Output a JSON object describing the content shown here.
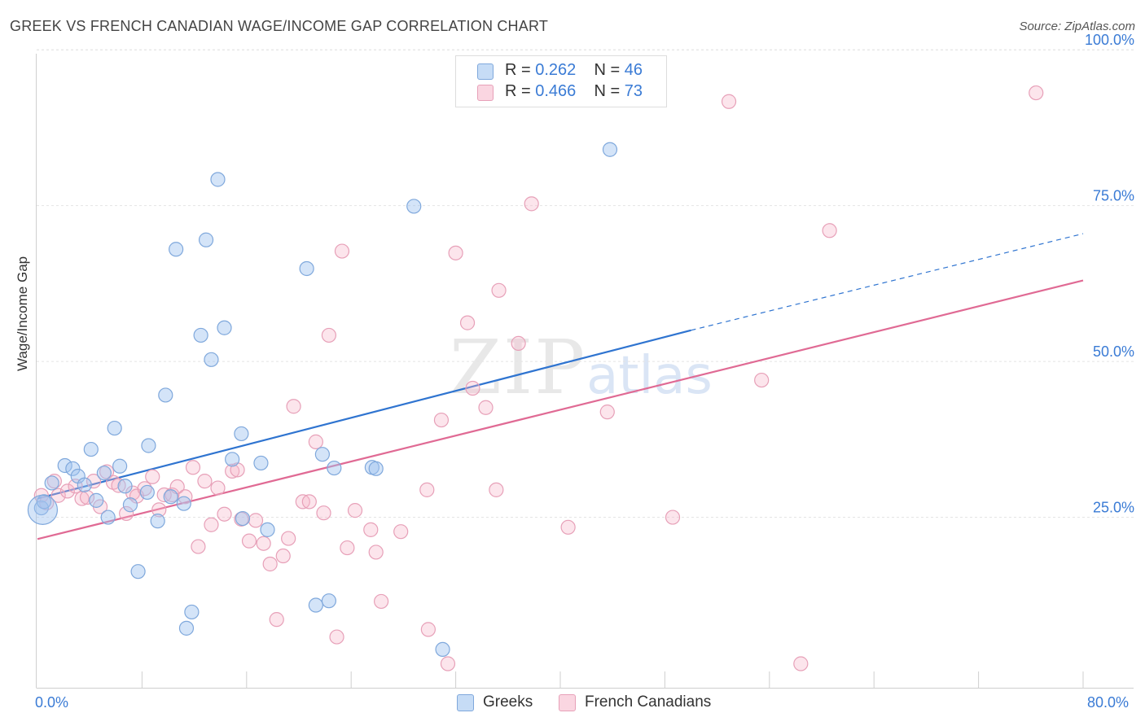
{
  "header": {
    "title": "GREEK VS FRENCH CANADIAN WAGE/INCOME GAP CORRELATION CHART",
    "source": "Source: ZipAtlas.com"
  },
  "legend": {
    "rows": [
      {
        "r_label": "R =",
        "r_value": "0.262",
        "n_label": "N =",
        "n_value": "46"
      },
      {
        "r_label": "R =",
        "r_value": "0.466",
        "n_label": "N =",
        "n_value": "73"
      }
    ]
  },
  "bottom_legend": {
    "greeks": "Greeks",
    "french": "French Canadians"
  },
  "watermark": {
    "zip": "ZIP",
    "atlas": "atlas"
  },
  "colors": {
    "greek_fill": "rgba(160,196,240,0.45)",
    "greek_stroke": "#7fa8dc",
    "greek_line": "#2f74d0",
    "french_fill": "rgba(245,180,200,0.35)",
    "french_stroke": "#e7a0b8",
    "french_line": "#e06a94"
  },
  "chart_data": {
    "type": "scatter",
    "title": "GREEK VS FRENCH CANADIAN WAGE/INCOME GAP CORRELATION CHART",
    "xlabel": "",
    "ylabel": "Wage/Income Gap",
    "xlim": [
      0,
      80
    ],
    "ylim": [
      0,
      105
    ],
    "x_tick_labels": [
      "0.0%",
      "80.0%"
    ],
    "y_ticks": [
      25,
      50,
      75,
      100
    ],
    "y_tick_labels": [
      "25.0%",
      "50.0%",
      "75.0%",
      "100.0%"
    ],
    "grid": true,
    "legend_position": "top-center",
    "series": [
      {
        "name": "Greeks",
        "r": 0.262,
        "n": 46,
        "trend": {
          "x0": 0,
          "y0": 28.0,
          "x1": 50,
          "y1": 55.0,
          "dashed_to_x": 80,
          "dashed_to_y": 70.5
        },
        "points": [
          [
            0.3,
            26.5
          ],
          [
            0.5,
            27.5
          ],
          [
            1.1,
            30.5
          ],
          [
            2.1,
            33.3
          ],
          [
            2.7,
            32.8
          ],
          [
            3.1,
            31.6
          ],
          [
            3.6,
            30.2
          ],
          [
            4.1,
            35.9
          ],
          [
            4.5,
            27.7
          ],
          [
            5.1,
            32.1
          ],
          [
            5.4,
            25.0
          ],
          [
            5.9,
            39.3
          ],
          [
            6.3,
            33.2
          ],
          [
            6.7,
            30.0
          ],
          [
            7.1,
            27.0
          ],
          [
            7.7,
            16.3
          ],
          [
            8.4,
            29.0
          ],
          [
            8.5,
            36.5
          ],
          [
            9.2,
            24.4
          ],
          [
            9.8,
            44.6
          ],
          [
            10.2,
            28.3
          ],
          [
            10.6,
            68.0
          ],
          [
            11.2,
            27.2
          ],
          [
            11.4,
            7.2
          ],
          [
            11.8,
            9.8
          ],
          [
            12.5,
            54.2
          ],
          [
            12.9,
            69.5
          ],
          [
            13.3,
            50.3
          ],
          [
            13.8,
            79.2
          ],
          [
            14.3,
            55.4
          ],
          [
            14.9,
            34.3
          ],
          [
            15.7,
            24.8
          ],
          [
            15.6,
            38.4
          ],
          [
            17.1,
            33.7
          ],
          [
            17.6,
            23.0
          ],
          [
            20.6,
            64.9
          ],
          [
            21.3,
            10.9
          ],
          [
            21.8,
            35.1
          ],
          [
            22.3,
            11.6
          ],
          [
            22.7,
            32.9
          ],
          [
            25.6,
            33.0
          ],
          [
            25.9,
            32.8
          ],
          [
            28.8,
            74.9
          ],
          [
            31.0,
            3.8
          ],
          [
            43.8,
            84.0
          ],
          [
            0.4,
            26.2
          ]
        ]
      },
      {
        "name": "French Canadians",
        "r": 0.466,
        "n": 73,
        "trend": {
          "x0": 0,
          "y0": 21.5,
          "x1": 80,
          "y1": 63.0
        },
        "points": [
          [
            0.3,
            28.5
          ],
          [
            0.7,
            27.3
          ],
          [
            1.3,
            30.8
          ],
          [
            1.6,
            28.5
          ],
          [
            2.3,
            29.2
          ],
          [
            2.9,
            30.0
          ],
          [
            3.4,
            28.0
          ],
          [
            3.8,
            28.2
          ],
          [
            4.3,
            30.8
          ],
          [
            4.8,
            26.7
          ],
          [
            5.3,
            32.3
          ],
          [
            5.8,
            30.6
          ],
          [
            6.2,
            30.1
          ],
          [
            6.8,
            25.6
          ],
          [
            7.3,
            28.9
          ],
          [
            7.6,
            28.4
          ],
          [
            8.2,
            29.6
          ],
          [
            8.8,
            31.5
          ],
          [
            9.3,
            26.2
          ],
          [
            9.7,
            28.6
          ],
          [
            10.3,
            28.6
          ],
          [
            10.7,
            29.9
          ],
          [
            11.3,
            28.3
          ],
          [
            11.9,
            33.0
          ],
          [
            12.3,
            20.3
          ],
          [
            12.8,
            30.8
          ],
          [
            13.3,
            23.8
          ],
          [
            13.8,
            29.7
          ],
          [
            14.3,
            25.5
          ],
          [
            14.9,
            32.4
          ],
          [
            15.3,
            32.6
          ],
          [
            15.6,
            24.7
          ],
          [
            16.2,
            21.2
          ],
          [
            16.7,
            24.5
          ],
          [
            17.3,
            20.8
          ],
          [
            17.8,
            17.5
          ],
          [
            18.3,
            8.6
          ],
          [
            18.8,
            18.8
          ],
          [
            19.2,
            21.6
          ],
          [
            19.6,
            42.8
          ],
          [
            20.3,
            27.5
          ],
          [
            20.8,
            27.5
          ],
          [
            21.3,
            37.1
          ],
          [
            21.9,
            25.7
          ],
          [
            22.3,
            54.2
          ],
          [
            22.9,
            5.8
          ],
          [
            23.3,
            67.7
          ],
          [
            23.7,
            20.1
          ],
          [
            24.3,
            26.1
          ],
          [
            25.5,
            23.0
          ],
          [
            25.9,
            19.4
          ],
          [
            26.3,
            11.5
          ],
          [
            27.8,
            22.7
          ],
          [
            29.8,
            29.4
          ],
          [
            29.9,
            7.0
          ],
          [
            30.9,
            40.6
          ],
          [
            31.4,
            1.5
          ],
          [
            32.0,
            67.4
          ],
          [
            32.9,
            56.2
          ],
          [
            33.3,
            45.7
          ],
          [
            34.3,
            42.6
          ],
          [
            35.3,
            61.4
          ],
          [
            36.8,
            52.9
          ],
          [
            37.8,
            75.3
          ],
          [
            40.6,
            23.4
          ],
          [
            43.6,
            41.9
          ],
          [
            48.6,
            25.0
          ],
          [
            52.9,
            91.7
          ],
          [
            55.4,
            47.0
          ],
          [
            58.4,
            1.5
          ],
          [
            60.6,
            71.0
          ],
          [
            76.4,
            93.1
          ],
          [
            35.1,
            29.4
          ]
        ]
      }
    ]
  }
}
